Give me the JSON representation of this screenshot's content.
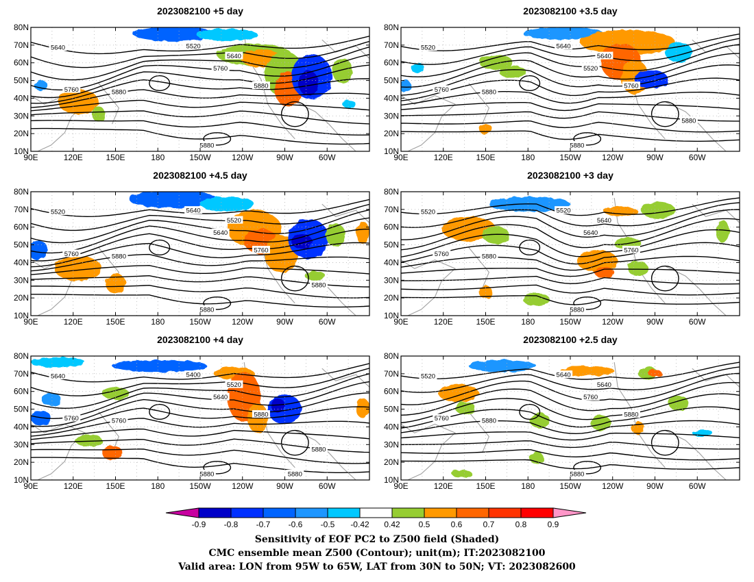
{
  "panels": [
    {
      "title": "2023082100 +5 day",
      "labels": [
        "5640",
        "5520",
        "5640",
        "5760",
        "5760",
        "5880",
        "5880",
        "5880"
      ]
    },
    {
      "title": "2023082100 +3.5 day",
      "labels": [
        "5520",
        "5640",
        "5640",
        "5520",
        "5760",
        "5760",
        "5880",
        "5880",
        "5880"
      ]
    },
    {
      "title": "2023082100 +4.5 day",
      "labels": [
        "5520",
        "5640",
        "5520",
        "5640",
        "5760",
        "5760",
        "5880",
        "5880",
        "5880"
      ]
    },
    {
      "title": "2023082100 +3 day",
      "labels": [
        "5520",
        "5520",
        "5640",
        "5640",
        "5760",
        "5760",
        "5880",
        "5880"
      ]
    },
    {
      "title": "2023082100 +4 day",
      "labels": [
        "5640",
        "5400",
        "5520",
        "5640",
        "5760",
        "5880",
        "5760",
        "5880",
        "5880",
        "5880"
      ]
    },
    {
      "title": "2023082100 +2.5 day",
      "labels": [
        "5520",
        "5640",
        "5640",
        "5760",
        "5760",
        "5880",
        "5880",
        "5880"
      ]
    }
  ],
  "axes": {
    "lon_ticks": [
      "90E",
      "120E",
      "150E",
      "180",
      "150W",
      "120W",
      "90W",
      "60W"
    ],
    "lat_ticks": [
      "80N",
      "70N",
      "60N",
      "50N",
      "40N",
      "30N",
      "20N",
      "10N"
    ]
  },
  "colorbar": {
    "labels": [
      "-0.9",
      "-0.8",
      "-0.7",
      "-0.6",
      "-0.5",
      "-0.42",
      "0.42",
      "0.5",
      "0.6",
      "0.7",
      "0.8",
      "0.9"
    ],
    "colors": [
      "#0000c8",
      "#0030ff",
      "#0064ff",
      "#1e96ff",
      "#00c8ff",
      "#ffffff",
      "#96cd32",
      "#ff9900",
      "#ff6600",
      "#ff3300",
      "#ff0000"
    ],
    "low_end": "#c800a0",
    "high_end": "#ff96c8"
  },
  "caption": {
    "line1": "Sensitivity of EOF PC2 to Z500 field (Shaded)",
    "line2": "CMC ensemble mean Z500 (Contour); unit(m); IT:2023082100",
    "line3": "Valid area: LON from 95W to 65W, LAT from 30N to 50N; VT: 2023082600"
  }
}
